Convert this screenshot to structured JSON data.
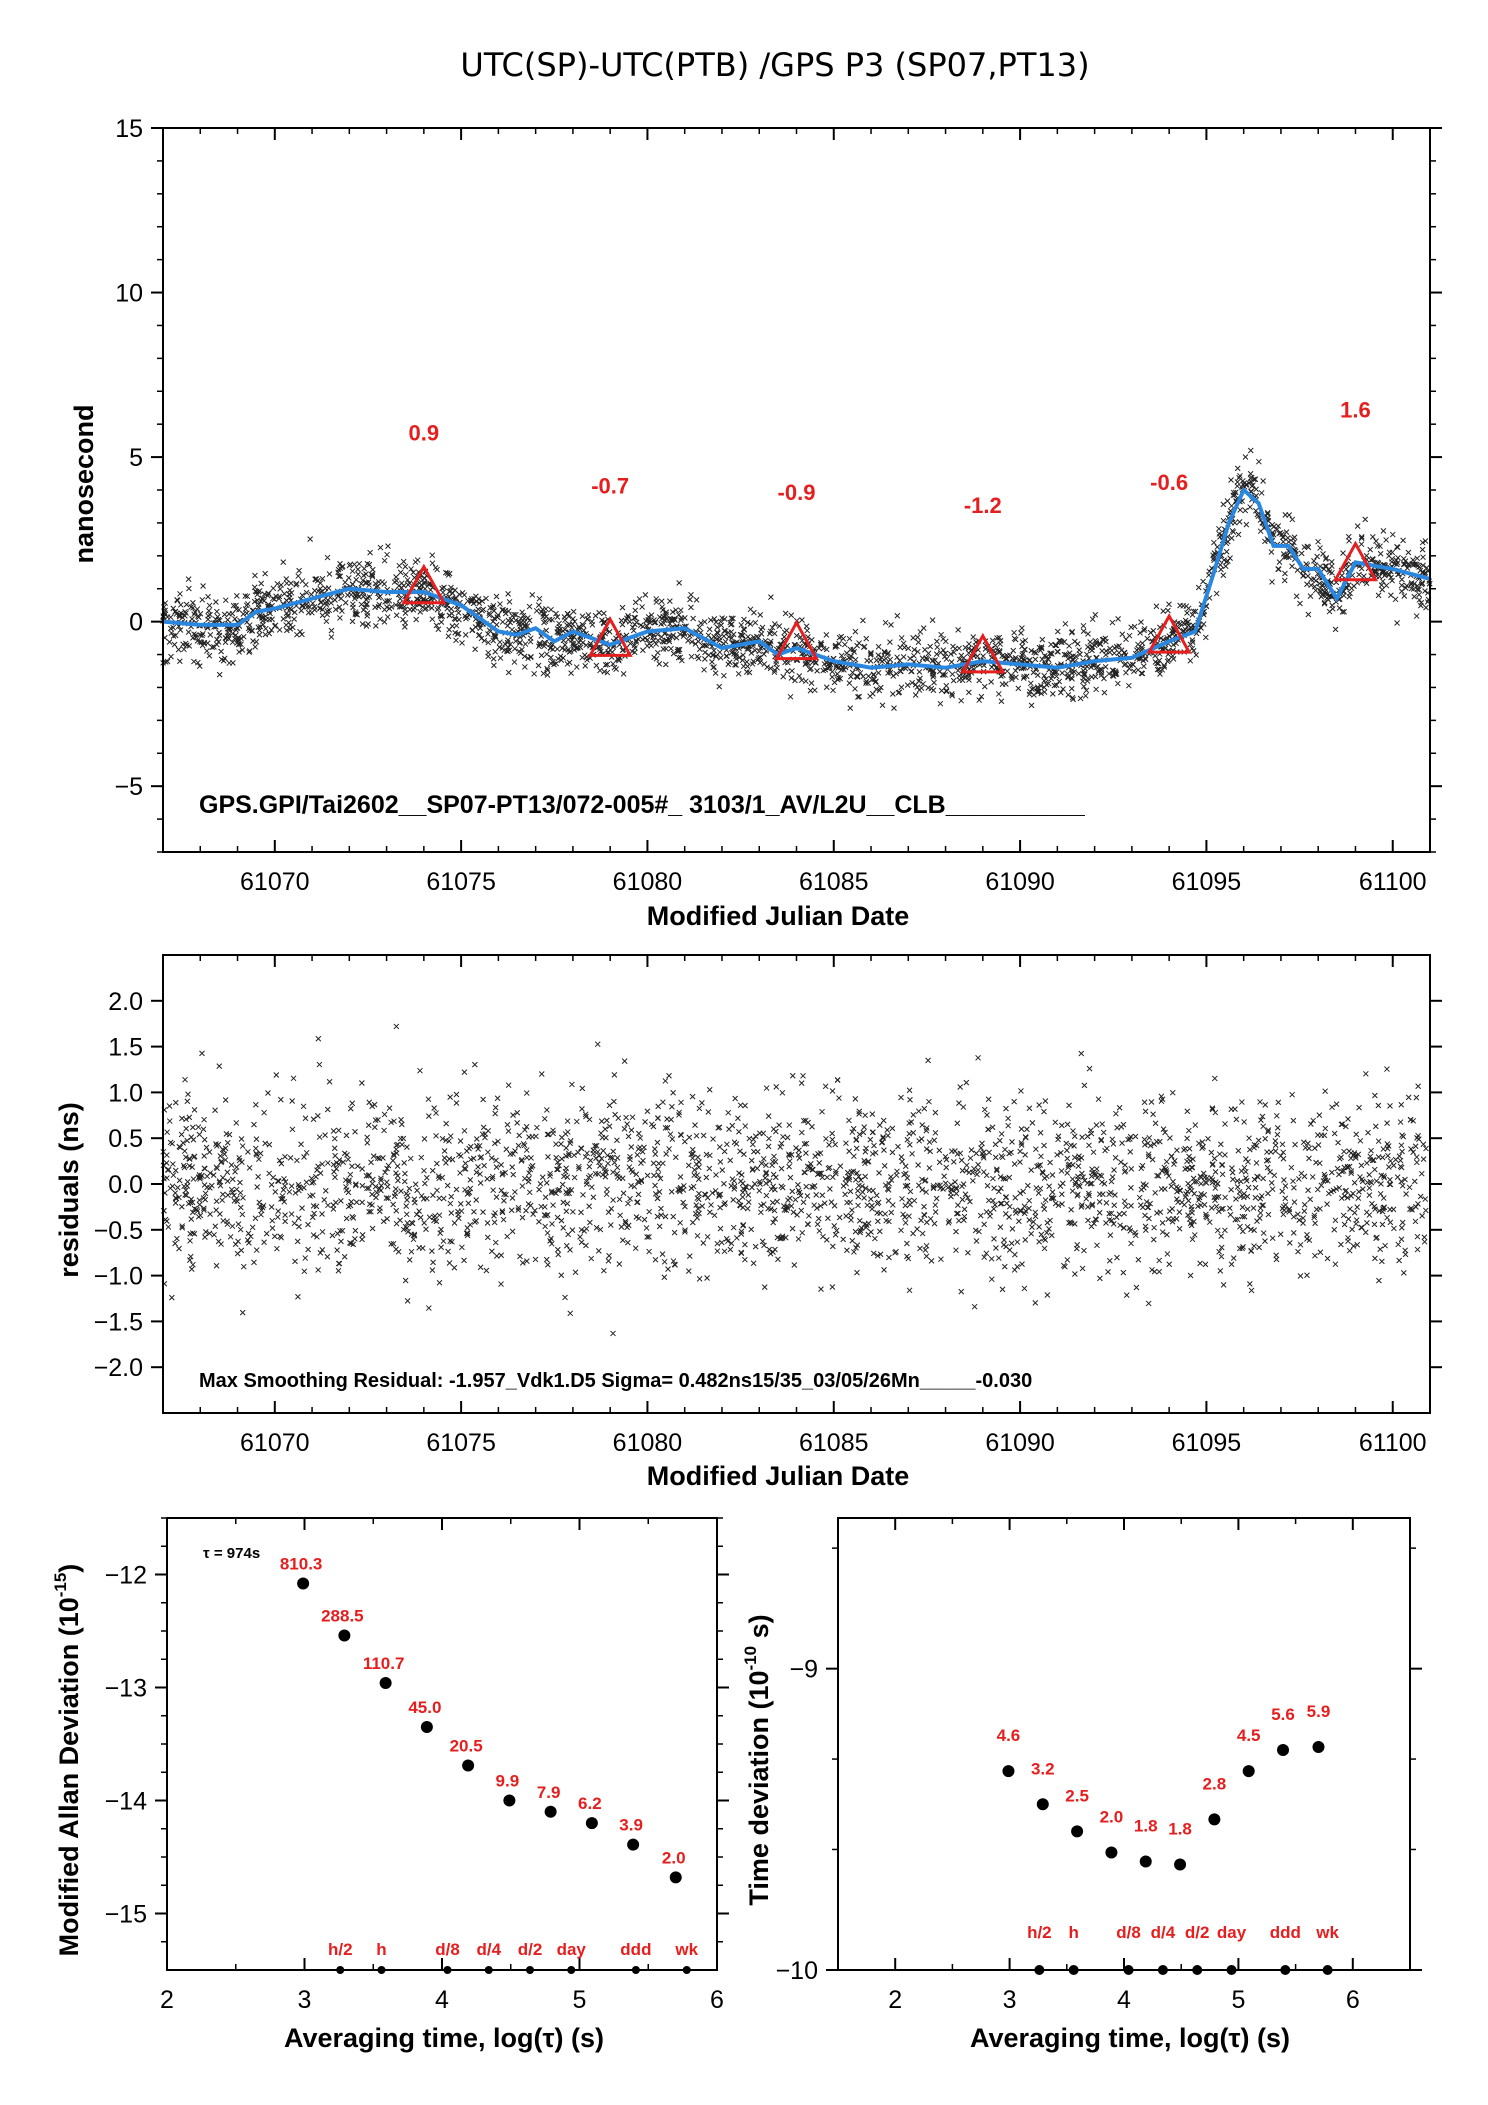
{
  "title": "UTC(SP)-UTC(PTB)  /GPS  P3  (SP07,PT13)",
  "colors": {
    "smooth_line": "#2a87e0",
    "triangle": "#e61e1e",
    "label_red": "#e61e1e",
    "points": "#000000"
  },
  "chart_data": [
    {
      "type": "scatter",
      "panel": "top",
      "xlabel": "Modified Julian Date",
      "ylabel": "nanosecond",
      "xlim": [
        61067,
        61101
      ],
      "ylim": [
        -7,
        15
      ],
      "xticks": [
        "61070",
        "61075",
        "61080",
        "61085",
        "61090",
        "61095",
        "61100"
      ],
      "yticks": [
        "15",
        "10",
        "5",
        "0",
        "−5"
      ],
      "grid": false,
      "note": "GPS.GPI/Tai2602__SP07-PT13/072-005#_  3103/1_AV/L2U__CLB__________",
      "series": [
        {
          "kind": "smoothed-line",
          "x": [
            61067,
            61068,
            61069,
            61069.5,
            61070,
            61071,
            61072,
            61073,
            61074,
            61075,
            61076,
            61076.5,
            61077,
            61077.5,
            61078,
            61079,
            61080,
            61081,
            61081.5,
            61082,
            61083,
            61083.5,
            61084,
            61085,
            61086,
            61087,
            61088,
            61089,
            61090,
            61091,
            61092,
            61093,
            61094,
            61094.7,
            61095.2,
            61095.6,
            61096,
            61096.4,
            61096.8,
            61097.2,
            61097.6,
            61098,
            61098.5,
            61099,
            61099.5,
            61100,
            61101
          ],
          "y": [
            0.0,
            -0.1,
            -0.1,
            0.3,
            0.4,
            0.7,
            1.0,
            0.9,
            0.9,
            0.5,
            -0.3,
            -0.4,
            -0.2,
            -0.6,
            -0.3,
            -0.7,
            -0.3,
            -0.2,
            -0.5,
            -0.8,
            -0.6,
            -1.0,
            -0.8,
            -1.2,
            -1.4,
            -1.3,
            -1.4,
            -1.2,
            -1.3,
            -1.4,
            -1.2,
            -1.1,
            -0.6,
            -0.3,
            1.5,
            3.0,
            4.0,
            3.6,
            2.3,
            2.3,
            1.6,
            1.6,
            0.7,
            1.8,
            1.7,
            1.6,
            1.3
          ]
        },
        {
          "kind": "triangles",
          "x": [
            61074,
            61079,
            61084,
            61089,
            61094,
            61099
          ],
          "y": [
            1.0,
            -0.6,
            -0.7,
            -1.1,
            -0.5,
            1.7
          ],
          "labels": [
            "0.9",
            "-0.7",
            "-0.9",
            "-1.2",
            "-0.6",
            "1.6"
          ],
          "label_y": [
            5.5,
            3.9,
            3.7,
            3.3,
            4.0,
            6.2
          ]
        }
      ]
    },
    {
      "type": "scatter",
      "panel": "residuals",
      "xlabel": "Modified Julian Date",
      "ylabel": "residuals (ns)",
      "xlim": [
        61067,
        61101
      ],
      "ylim": [
        -2.5,
        2.5
      ],
      "xticks": [
        "61070",
        "61075",
        "61080",
        "61085",
        "61090",
        "61095",
        "61100"
      ],
      "yticks": [
        "2.0",
        "1.5",
        "1.0",
        "0.5",
        "0.0",
        "−0.5",
        "−1.0",
        "−1.5",
        "−2.0"
      ],
      "note": "Max Smoothing Residual: -1.957_Vdk1.D5  Sigma= 0.482ns15/35_03/05/26Mn_____-0.030"
    },
    {
      "type": "scatter",
      "panel": "allan",
      "xlabel": "Averaging time, log(τ) (s)",
      "ylabel_main": "Modified Allan Deviation (10",
      "ylabel_exp": "-15",
      "ylabel_end": ")",
      "xlim": [
        2,
        6
      ],
      "ylim": [
        -15.5,
        -11.5
      ],
      "xticks": [
        "2",
        "3",
        "4",
        "5",
        "6"
      ],
      "yticks": [
        "−12",
        "−13",
        "−14",
        "−15"
      ],
      "tau_note": "τ = 974s",
      "x": [
        2.99,
        3.29,
        3.59,
        3.89,
        4.19,
        4.49,
        4.79,
        5.09,
        5.39,
        5.7
      ],
      "y": [
        -12.08,
        -12.54,
        -12.96,
        -13.35,
        -13.69,
        -14.0,
        -14.1,
        -14.2,
        -14.39,
        -14.68
      ],
      "labels": [
        "810.3",
        "288.5",
        "110.7",
        "45.0",
        "20.5",
        "9.9",
        "7.9",
        "6.2",
        "3.9",
        "2.0"
      ],
      "marker_labels": [
        "h/2",
        "h",
        "d/8",
        "d/4",
        "d/2",
        "day",
        "ddd",
        "wk"
      ],
      "marker_x": [
        3.26,
        3.56,
        4.04,
        4.34,
        4.64,
        4.94,
        5.41,
        5.78
      ]
    },
    {
      "type": "scatter",
      "panel": "timedev",
      "xlabel": "Averaging time, log(τ) (s)",
      "ylabel_main": "Time deviation (10",
      "ylabel_exp": "-10",
      "ylabel_end": " s)",
      "xlim": [
        1.5,
        6.5
      ],
      "ylim": [
        -10,
        -8.5
      ],
      "xticks": [
        "2",
        "3",
        "4",
        "5",
        "6"
      ],
      "yticks": [
        "−9",
        "−10"
      ],
      "x": [
        2.99,
        3.29,
        3.59,
        3.89,
        4.19,
        4.49,
        4.79,
        5.09,
        5.39,
        5.7
      ],
      "y": [
        -9.34,
        -9.45,
        -9.54,
        -9.61,
        -9.64,
        -9.65,
        -9.5,
        -9.34,
        -9.27,
        -9.26
      ],
      "labels": [
        "4.6",
        "3.2",
        "2.5",
        "2.0",
        "1.8",
        "1.8",
        "2.8",
        "4.5",
        "5.6",
        "5.9"
      ],
      "marker_labels": [
        "h/2",
        "h",
        "d/8",
        "d/4",
        "d/2",
        "day",
        "ddd",
        "wk"
      ],
      "marker_x": [
        3.26,
        3.56,
        4.04,
        4.34,
        4.64,
        4.94,
        5.41,
        5.78
      ]
    }
  ]
}
